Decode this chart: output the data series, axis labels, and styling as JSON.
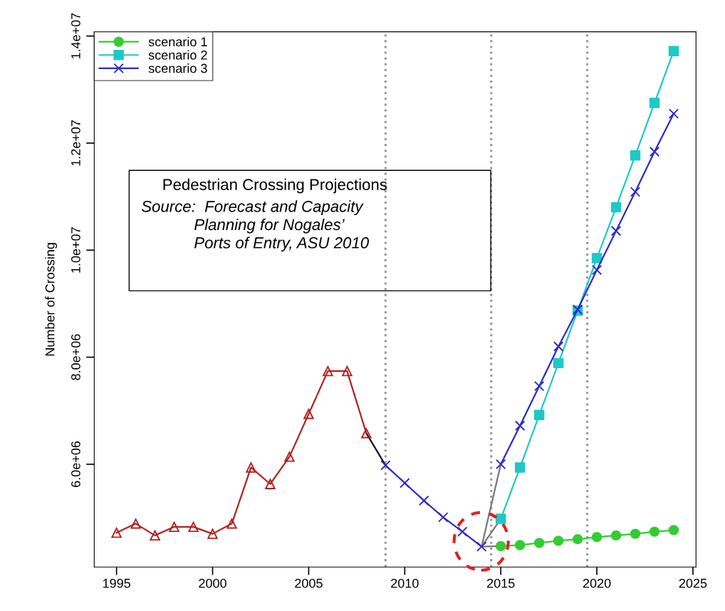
{
  "chart_data": {
    "type": "line",
    "ylabel": "Number of Crossing",
    "annotations": [
      "Pedestrian Crossing Projections",
      "Source:  Forecast and Capacity\n            Planning for Nogales’\n            Ports of Entry, ASU 2010"
    ],
    "xlim": [
      1993.84,
      2025.16
    ],
    "xticks": [
      1995,
      2000,
      2005,
      2010,
      2015,
      2020,
      2025
    ],
    "ylim": [
      4080000,
      14080000
    ],
    "yticks": [
      {
        "value": 6000000,
        "label": "6.0e+06"
      },
      {
        "value": 8000000,
        "label": "8.0e+06"
      },
      {
        "value": 10000000,
        "label": "1.0e+07"
      },
      {
        "value": 12000000,
        "label": "1.2e+07"
      },
      {
        "value": 14000000,
        "label": "1.4e+07"
      }
    ],
    "grid": false,
    "legend": "top left",
    "ref_lines": [
      {
        "axis": "x",
        "value": 2009,
        "color": "#999999",
        "line_style": "dotted"
      },
      {
        "axis": "x",
        "value": 2014.5,
        "color": "#999999",
        "line_style": "dotted"
      },
      {
        "axis": "x",
        "value": 2019.5,
        "color": "#999999",
        "line_style": "dotted"
      }
    ],
    "series": [
      {
        "color": "#111111",
        "marker": "none",
        "x": [
          2008,
          2009
        ],
        "values": [
          6580000,
          5980000
        ]
      },
      {
        "color": "#777777",
        "marker": "none",
        "x": [
          2014,
          2015
        ],
        "values": [
          4460000,
          6000000
        ]
      },
      {
        "color": "#777777",
        "marker": "none",
        "x": [
          2014,
          2015
        ],
        "values": [
          4460000,
          4980000
        ]
      },
      {
        "color": "#777777",
        "marker": "none",
        "x": [
          2014,
          2015
        ],
        "values": [
          4460000,
          4470000
        ]
      },
      {
        "color": "#b22222",
        "marker": "triangle",
        "x": [
          1995,
          1996,
          1997,
          1998,
          1999,
          2000,
          2001,
          2002,
          2003,
          2004,
          2005,
          2006,
          2007,
          2008
        ],
        "values": [
          4720000,
          4890000,
          4670000,
          4830000,
          4830000,
          4700000,
          4890000,
          5940000,
          5630000,
          6140000,
          6940000,
          7740000,
          7740000,
          6580000
        ]
      },
      {
        "color": "#2b2bc8",
        "marker": "cross",
        "x": [
          2009,
          2010,
          2011,
          2012,
          2013,
          2014
        ],
        "values": [
          5980000,
          5650000,
          5320000,
          5010000,
          4740000,
          4460000
        ]
      },
      {
        "name": "scenario 1",
        "color": "#33cc33",
        "marker": "circle",
        "x": [
          2015,
          2016,
          2017,
          2018,
          2019,
          2020,
          2021,
          2022,
          2023,
          2024
        ],
        "values": [
          4470000,
          4490000,
          4530000,
          4570000,
          4600000,
          4640000,
          4670000,
          4700000,
          4740000,
          4770000
        ]
      },
      {
        "name": "scenario 2",
        "color": "#1fc8c8",
        "marker": "square",
        "x": [
          2015,
          2016,
          2017,
          2018,
          2019,
          2020,
          2021,
          2022,
          2023,
          2024
        ],
        "values": [
          4980000,
          5940000,
          6920000,
          7890000,
          8870000,
          9850000,
          10800000,
          11770000,
          12750000,
          13720000
        ]
      },
      {
        "name": "scenario 3",
        "color": "#2b2bc8",
        "marker": "cross",
        "x": [
          2015,
          2016,
          2017,
          2018,
          2019,
          2020,
          2021,
          2022,
          2023,
          2024
        ],
        "values": [
          6000000,
          6720000,
          7460000,
          8200000,
          8890000,
          9630000,
          10360000,
          11090000,
          11840000,
          12550000
        ]
      }
    ]
  }
}
